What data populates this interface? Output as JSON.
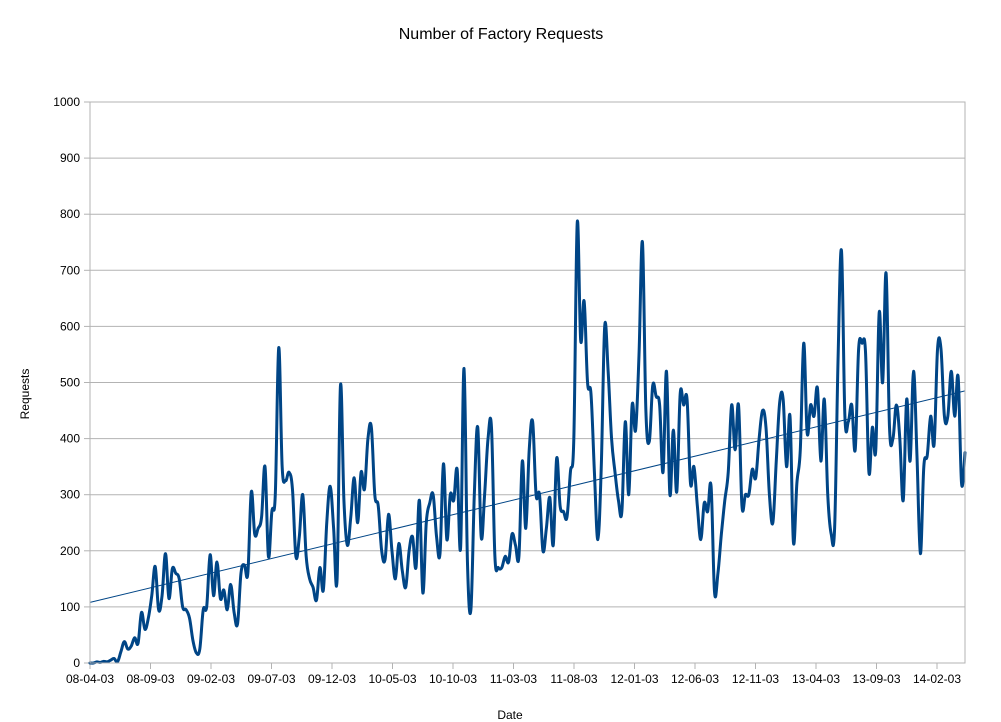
{
  "colors": {
    "series": "#004586",
    "trendline": "#004586",
    "grid": "#b3b3b3",
    "axis": "#b3b3b3",
    "background": "#ffffff"
  },
  "chart_data": {
    "type": "line",
    "title": "Number of Factory Requests",
    "xlabel": "Date",
    "ylabel": "Requests",
    "ylim": [
      0,
      1000
    ],
    "y_ticks": [
      0,
      100,
      200,
      300,
      400,
      500,
      600,
      700,
      800,
      900,
      1000
    ],
    "y_tick_labels": [
      "0",
      "100",
      "200",
      "300",
      "400",
      "500",
      "600",
      "700",
      "800",
      "900",
      "1000"
    ],
    "x_tick_labels": [
      "08-04-03",
      "08-09-03",
      "09-02-03",
      "09-07-03",
      "09-12-03",
      "10-05-03",
      "10-10-03",
      "11-03-03",
      "11-08-03",
      "12-01-03",
      "12-06-03",
      "12-11-03",
      "13-04-03",
      "13-09-03",
      "14-02-03"
    ],
    "grid": true,
    "legend": "none",
    "series": [
      {
        "values": [
          0,
          0,
          2,
          1,
          3,
          2,
          5,
          8,
          2,
          20,
          38,
          25,
          30,
          45,
          35,
          90,
          60,
          80,
          120,
          172,
          95,
          120,
          195,
          115,
          168,
          160,
          150,
          100,
          95,
          80,
          40,
          18,
          25,
          95,
          100,
          193,
          120,
          180,
          115,
          130,
          95,
          140,
          90,
          70,
          160,
          175,
          160,
          305,
          230,
          240,
          260,
          350,
          190,
          270,
          300,
          562,
          350,
          325,
          340,
          310,
          190,
          225,
          300,
          190,
          150,
          135,
          112,
          170,
          130,
          250,
          315,
          240,
          148,
          495,
          290,
          210,
          260,
          330,
          250,
          340,
          310,
          400,
          420,
          300,
          280,
          200,
          185,
          265,
          200,
          150,
          213,
          165,
          135,
          200,
          225,
          170,
          290,
          125,
          250,
          285,
          300,
          225,
          195,
          355,
          220,
          300,
          290,
          345,
          205,
          525,
          180,
          95,
          300,
          420,
          225,
          300,
          400,
          420,
          190,
          170,
          170,
          190,
          180,
          230,
          210,
          190,
          360,
          240,
          380,
          430,
          300,
          300,
          200,
          240,
          295,
          210,
          365,
          280,
          270,
          260,
          340,
          400,
          785,
          575,
          645,
          500,
          480,
          340,
          220,
          350,
          600,
          520,
          400,
          340,
          290,
          270,
          430,
          300,
          460,
          415,
          550,
          750,
          450,
          395,
          495,
          475,
          460,
          340,
          520,
          300,
          415,
          305,
          480,
          460,
          470,
          320,
          350,
          280,
          220,
          285,
          270,
          315,
          127,
          160,
          230,
          290,
          340,
          460,
          380,
          460,
          280,
          300,
          300,
          345,
          330,
          400,
          450,
          420,
          300,
          250,
          360,
          465,
          470,
          350,
          440,
          215,
          320,
          380,
          570,
          410,
          460,
          440,
          490,
          360,
          470,
          300,
          230,
          240,
          540,
          735,
          440,
          430,
          460,
          380,
          560,
          570,
          555,
          340,
          420,
          380,
          625,
          500,
          695,
          420,
          400,
          460,
          400,
          290,
          470,
          360,
          520,
          370,
          195,
          350,
          370,
          440,
          390,
          560,
          560,
          440,
          440,
          520,
          440,
          510,
          320,
          375
        ]
      }
    ],
    "trendline": {
      "type": "linear",
      "start_value": 108,
      "end_value": 485
    }
  }
}
